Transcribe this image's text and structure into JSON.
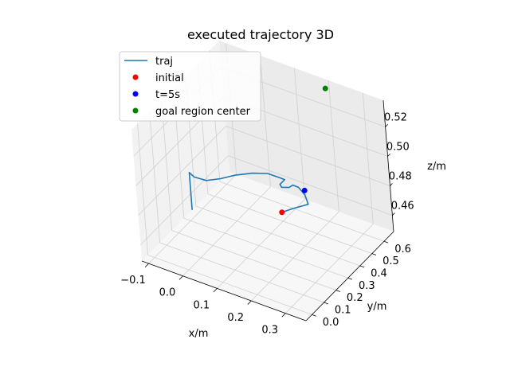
{
  "chart_data": {
    "type": "line",
    "title": "executed trajectory 3D",
    "xlabel": "x/m",
    "ylabel": "y/m",
    "zlabel": "z/m",
    "xticks": [
      -0.1,
      0.0,
      0.1,
      0.2,
      0.3
    ],
    "xtick_labels": [
      "−0.1",
      "0.0",
      "0.1",
      "0.2",
      "0.3"
    ],
    "yticks": [
      0.0,
      0.1,
      0.2,
      0.3,
      0.4,
      0.5,
      0.6
    ],
    "ytick_labels": [
      "0.0",
      "0.1",
      "0.2",
      "0.3",
      "0.4",
      "0.5",
      "0.6"
    ],
    "zticks": [
      0.46,
      0.48,
      0.5,
      0.52
    ],
    "ztick_labels": [
      "0.46",
      "0.48",
      "0.50",
      "0.52"
    ],
    "xlim": [
      -0.12,
      0.36
    ],
    "ylim": [
      -0.05,
      0.68
    ],
    "zlim": [
      0.449,
      0.538
    ],
    "grid": true,
    "legend_position": "upper-left",
    "series": [
      {
        "name": "traj",
        "kind": "line",
        "color": "#1f77b4",
        "points": [
          [
            -0.05,
            0.19,
            0.495
          ],
          [
            -0.05,
            0.19,
            0.47
          ],
          [
            -0.05,
            0.19,
            0.495
          ],
          [
            -0.04,
            0.2,
            0.492
          ],
          [
            -0.02,
            0.24,
            0.488
          ],
          [
            0.0,
            0.3,
            0.486
          ],
          [
            0.02,
            0.36,
            0.485
          ],
          [
            0.05,
            0.42,
            0.484
          ],
          [
            0.08,
            0.46,
            0.483
          ],
          [
            0.11,
            0.47,
            0.482
          ],
          [
            0.13,
            0.46,
            0.483
          ],
          [
            0.14,
            0.42,
            0.486
          ],
          [
            0.15,
            0.37,
            0.489
          ],
          [
            0.17,
            0.33,
            0.492
          ],
          [
            0.2,
            0.31,
            0.496
          ],
          [
            0.22,
            0.29,
            0.501
          ],
          [
            0.24,
            0.28,
            0.502
          ],
          [
            0.25,
            0.3,
            0.496
          ],
          [
            0.25,
            0.32,
            0.488
          ],
          [
            0.22,
            0.28,
            0.486
          ],
          [
            0.2,
            0.24,
            0.485
          ]
        ]
      },
      {
        "name": "initial",
        "kind": "scatter",
        "color": "#ff0000",
        "points": [
          [
            0.2,
            0.24,
            0.485
          ]
        ]
      },
      {
        "name": "t=5s",
        "kind": "scatter",
        "color": "#0000ff",
        "points": [
          [
            0.25,
            0.3,
            0.499
          ]
        ]
      },
      {
        "name": "goal region center",
        "kind": "scatter",
        "color": "#008000",
        "points": [
          [
            0.2,
            0.65,
            0.535
          ]
        ]
      }
    ]
  }
}
